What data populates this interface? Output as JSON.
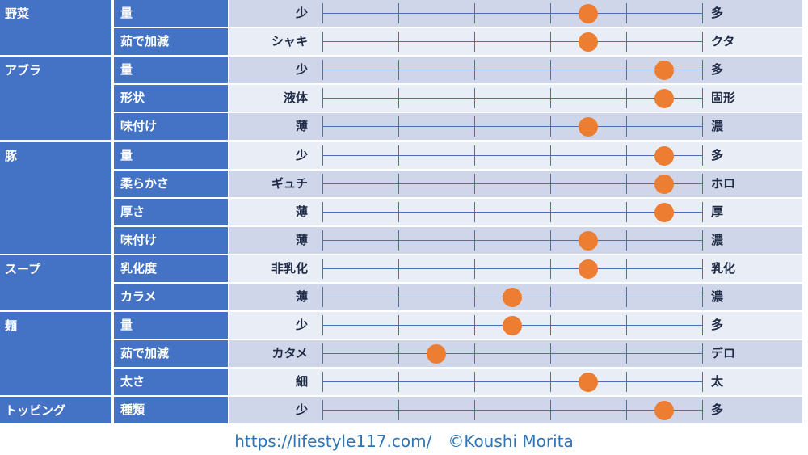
{
  "chart_data": {
    "type": "table",
    "scale_max": 5,
    "groups": [
      {
        "category": "野菜",
        "rows": [
          {
            "attribute": "量",
            "left": "少",
            "right": "多",
            "value": 3.5
          },
          {
            "attribute": "茹で加減",
            "left": "シャキ",
            "right": "クタ",
            "value": 3.5
          }
        ]
      },
      {
        "category": "アブラ",
        "rows": [
          {
            "attribute": "量",
            "left": "少",
            "right": "多",
            "value": 4.5
          },
          {
            "attribute": "形状",
            "left": "液体",
            "right": "固形",
            "value": 4.5
          },
          {
            "attribute": "味付け",
            "left": "薄",
            "right": "濃",
            "value": 3.5
          }
        ]
      },
      {
        "category": "豚",
        "rows": [
          {
            "attribute": "量",
            "left": "少",
            "right": "多",
            "value": 4.5
          },
          {
            "attribute": "柔らかさ",
            "left": "ギュチ",
            "right": "ホロ",
            "value": 4.5
          },
          {
            "attribute": "厚さ",
            "left": "薄",
            "right": "厚",
            "value": 4.5
          },
          {
            "attribute": "味付け",
            "left": "薄",
            "right": "濃",
            "value": 3.5
          }
        ]
      },
      {
        "category": "スープ",
        "rows": [
          {
            "attribute": "乳化度",
            "left": "非乳化",
            "right": "乳化",
            "value": 3.5
          },
          {
            "attribute": "カラメ",
            "left": "薄",
            "right": "濃",
            "value": 2.5
          }
        ]
      },
      {
        "category": "麺",
        "rows": [
          {
            "attribute": "量",
            "left": "少",
            "right": "多",
            "value": 2.5
          },
          {
            "attribute": "茹で加減",
            "left": "カタメ",
            "right": "デロ",
            "value": 1.5
          },
          {
            "attribute": "太さ",
            "left": "細",
            "right": "太",
            "value": 3.5
          }
        ]
      },
      {
        "category": "トッピング",
        "rows": [
          {
            "attribute": "種類",
            "left": "少",
            "right": "多",
            "value": 4.5
          }
        ]
      }
    ]
  },
  "footer": {
    "credit": "https://lifestyle117.com/　©Koushi Morita"
  },
  "colors": {
    "header_blue": "#4472c4",
    "row_light": "#e9edf6",
    "row_dark": "#cfd6e9",
    "marker_orange": "#ed7d31",
    "scale_line": "#4a6fb5",
    "footer_text": "#2e75b6"
  }
}
